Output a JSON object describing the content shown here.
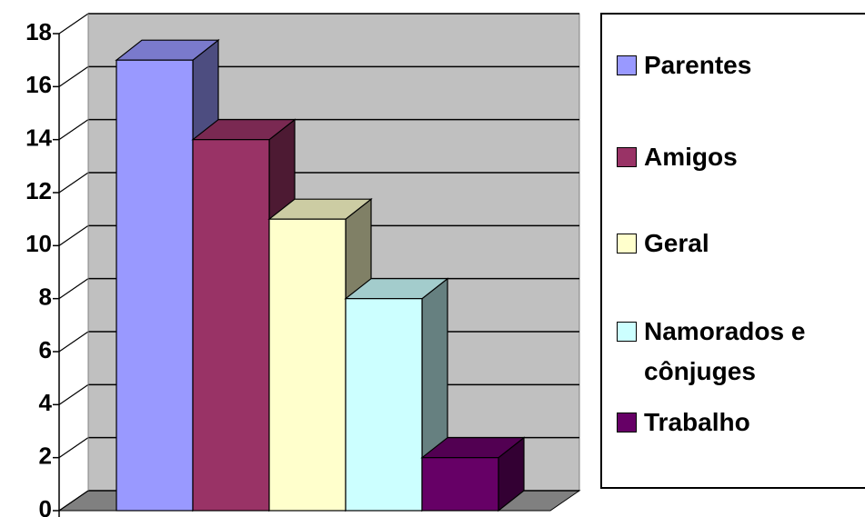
{
  "chart_data": {
    "type": "bar3d",
    "series": [
      {
        "name": "Parentes",
        "color": "#9999ff",
        "values": [
          17
        ]
      },
      {
        "name": "Amigos",
        "color": "#993366",
        "values": [
          14
        ]
      },
      {
        "name": "Geral",
        "color": "#ffffcc",
        "values": [
          11
        ]
      },
      {
        "name": "Namorados e cônjuges",
        "color": "#ccffff",
        "values": [
          8
        ]
      },
      {
        "name": "Trabalho",
        "color": "#660066",
        "values": [
          2
        ]
      }
    ],
    "ylim": [
      0,
      18
    ],
    "yticks": [
      0,
      2,
      4,
      6,
      8,
      10,
      12,
      14,
      16,
      18
    ],
    "grid": true
  }
}
